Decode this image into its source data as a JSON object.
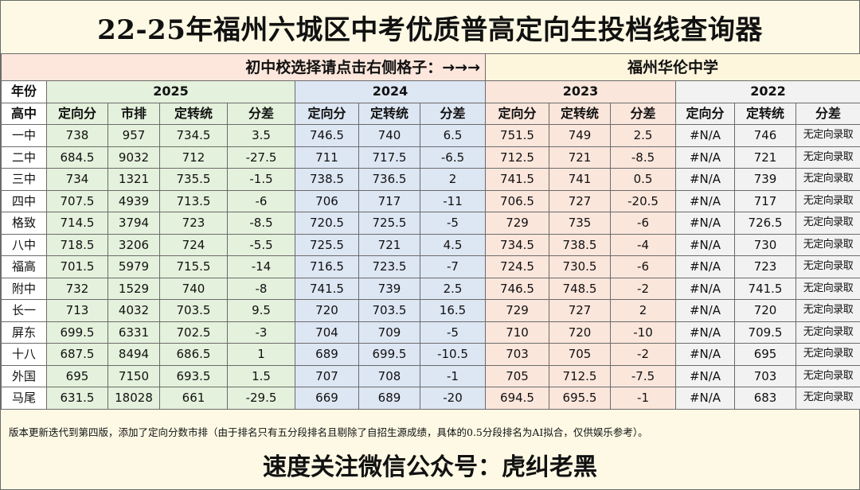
{
  "title": "22-25年福州六城区中考优质普高定向生投档线查询器",
  "selector": {
    "prompt": "初中校选择请点击右侧格子：→→→",
    "selected_school": "福州华伦中学"
  },
  "year_row": {
    "label": "年份",
    "years": [
      "2025",
      "2024",
      "2023",
      "2022"
    ]
  },
  "column_headers": {
    "school": "高中",
    "y2025": [
      "定向分",
      "市排",
      "定转统",
      "分差"
    ],
    "y2024": [
      "定向分",
      "定转统",
      "分差"
    ],
    "y2023": [
      "定向分",
      "定转统",
      "分差"
    ],
    "y2022": [
      "定向分",
      "定转统",
      "分差"
    ]
  },
  "rows": [
    {
      "school": "一中",
      "y2025": [
        "738",
        "957",
        "734.5",
        "3.5"
      ],
      "y2024": [
        "746.5",
        "740",
        "6.5"
      ],
      "y2023": [
        "751.5",
        "749",
        "2.5"
      ],
      "y2022": [
        "#N/A",
        "746",
        "无定向录取"
      ]
    },
    {
      "school": "二中",
      "y2025": [
        "684.5",
        "9032",
        "712",
        "-27.5"
      ],
      "y2024": [
        "711",
        "717.5",
        "-6.5"
      ],
      "y2023": [
        "712.5",
        "721",
        "-8.5"
      ],
      "y2022": [
        "#N/A",
        "721",
        "无定向录取"
      ]
    },
    {
      "school": "三中",
      "y2025": [
        "734",
        "1321",
        "735.5",
        "-1.5"
      ],
      "y2024": [
        "738.5",
        "736.5",
        "2"
      ],
      "y2023": [
        "741.5",
        "741",
        "0.5"
      ],
      "y2022": [
        "#N/A",
        "739",
        "无定向录取"
      ]
    },
    {
      "school": "四中",
      "y2025": [
        "707.5",
        "4939",
        "713.5",
        "-6"
      ],
      "y2024": [
        "706",
        "717",
        "-11"
      ],
      "y2023": [
        "706.5",
        "727",
        "-20.5"
      ],
      "y2022": [
        "#N/A",
        "717",
        "无定向录取"
      ]
    },
    {
      "school": "格致",
      "y2025": [
        "714.5",
        "3794",
        "723",
        "-8.5"
      ],
      "y2024": [
        "720.5",
        "725.5",
        "-5"
      ],
      "y2023": [
        "729",
        "735",
        "-6"
      ],
      "y2022": [
        "#N/A",
        "726.5",
        "无定向录取"
      ]
    },
    {
      "school": "八中",
      "y2025": [
        "718.5",
        "3206",
        "724",
        "-5.5"
      ],
      "y2024": [
        "725.5",
        "721",
        "4.5"
      ],
      "y2023": [
        "734.5",
        "738.5",
        "-4"
      ],
      "y2022": [
        "#N/A",
        "730",
        "无定向录取"
      ]
    },
    {
      "school": "福高",
      "y2025": [
        "701.5",
        "5979",
        "715.5",
        "-14"
      ],
      "y2024": [
        "716.5",
        "723.5",
        "-7"
      ],
      "y2023": [
        "724.5",
        "730.5",
        "-6"
      ],
      "y2022": [
        "#N/A",
        "723",
        "无定向录取"
      ]
    },
    {
      "school": "附中",
      "y2025": [
        "732",
        "1529",
        "740",
        "-8"
      ],
      "y2024": [
        "741.5",
        "739",
        "2.5"
      ],
      "y2023": [
        "746.5",
        "748.5",
        "-2"
      ],
      "y2022": [
        "#N/A",
        "741.5",
        "无定向录取"
      ]
    },
    {
      "school": "长一",
      "y2025": [
        "713",
        "4032",
        "703.5",
        "9.5"
      ],
      "y2024": [
        "720",
        "703.5",
        "16.5"
      ],
      "y2023": [
        "729",
        "727",
        "2"
      ],
      "y2022": [
        "#N/A",
        "720",
        "无定向录取"
      ]
    },
    {
      "school": "屏东",
      "y2025": [
        "699.5",
        "6331",
        "702.5",
        "-3"
      ],
      "y2024": [
        "704",
        "709",
        "-5"
      ],
      "y2023": [
        "710",
        "720",
        "-10"
      ],
      "y2022": [
        "#N/A",
        "709.5",
        "无定向录取"
      ]
    },
    {
      "school": "十八",
      "y2025": [
        "687.5",
        "8494",
        "686.5",
        "1"
      ],
      "y2024": [
        "689",
        "699.5",
        "-10.5"
      ],
      "y2023": [
        "703",
        "705",
        "-2"
      ],
      "y2022": [
        "#N/A",
        "695",
        "无定向录取"
      ]
    },
    {
      "school": "外国",
      "y2025": [
        "695",
        "7150",
        "693.5",
        "1.5"
      ],
      "y2024": [
        "707",
        "708",
        "-1"
      ],
      "y2023": [
        "705",
        "712.5",
        "-7.5"
      ],
      "y2022": [
        "#N/A",
        "703",
        "无定向录取"
      ]
    },
    {
      "school": "马尾",
      "y2025": [
        "631.5",
        "18028",
        "661",
        "-29.5"
      ],
      "y2024": [
        "669",
        "689",
        "-20"
      ],
      "y2023": [
        "694.5",
        "695.5",
        "-1"
      ],
      "y2022": [
        "#N/A",
        "683",
        "无定向录取"
      ]
    }
  ],
  "note": "版本更新迭代到第四版，添加了定向分数市排（由于排名只有五分段排名且剔除了自招生源成绩，具体的0.5分段排名为AI拟合，仅供娱乐参考）。",
  "follow": "速度关注微信公众号：虎纠老黑",
  "colors": {
    "y2025": "#e4f1dc",
    "y2024": "#dde6f3",
    "y2023": "#fbe6dc",
    "y2022": "#f2f2f2",
    "background": "#fdf9e4"
  }
}
